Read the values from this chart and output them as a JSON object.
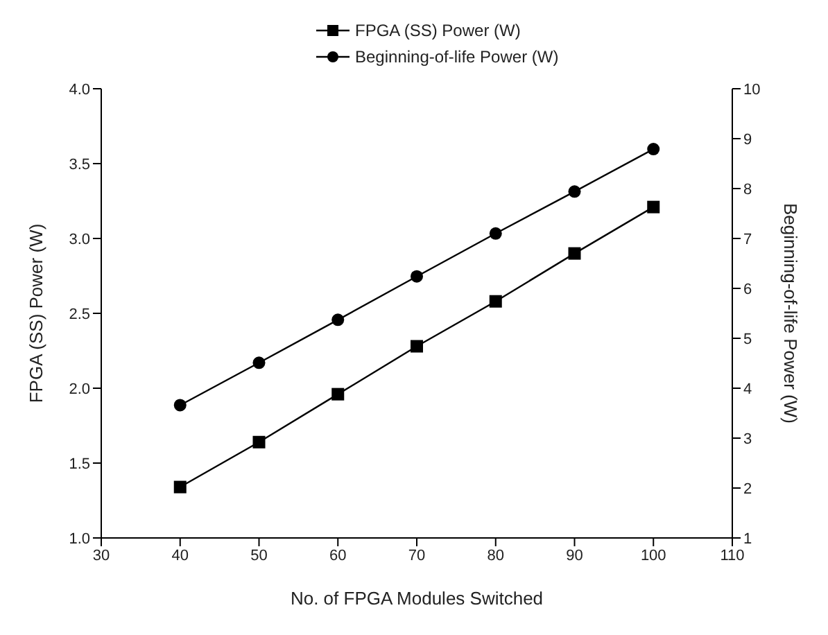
{
  "chart_data": {
    "type": "line",
    "xlabel": "No. of FPGA Modules Switched",
    "ylabel": "FPGA (SS) Power (W)",
    "y2label": "Beginning-of-life Power (W)",
    "x": [
      40,
      50,
      60,
      70,
      80,
      90,
      100
    ],
    "series": [
      {
        "name": "FPGA (SS) Power (W)",
        "color": "#000000",
        "marker": "square",
        "values": [
          1.34,
          1.64,
          1.96,
          2.28,
          2.58,
          2.9,
          3.21
        ]
      },
      {
        "name": "Beginning-of-life Power (W)",
        "color": "#000000",
        "marker": "circle",
        "axis": "y2",
        "values": [
          3.66,
          4.51,
          5.37,
          6.24,
          7.1,
          7.94,
          8.79
        ]
      }
    ],
    "xlim": [
      30,
      110
    ],
    "xticks": [
      30,
      40,
      50,
      60,
      70,
      80,
      90,
      100,
      110
    ],
    "ylim": [
      1,
      4
    ],
    "yticks": [
      {
        "value": 1,
        "label": "1.0"
      },
      {
        "value": 1.5,
        "label": "1.5"
      },
      {
        "value": 2,
        "label": "2.0"
      },
      {
        "value": 2.5,
        "label": "2.5"
      },
      {
        "value": 3,
        "label": "3.0"
      },
      {
        "value": 3.5,
        "label": "3.5"
      },
      {
        "value": 4,
        "label": "4.0"
      }
    ],
    "y2lim": [
      1,
      10
    ],
    "y2ticks": [
      1,
      2,
      3,
      4,
      5,
      6,
      7,
      8,
      9,
      10
    ],
    "legend": "top",
    "grid": false,
    "line_style": "solid"
  }
}
